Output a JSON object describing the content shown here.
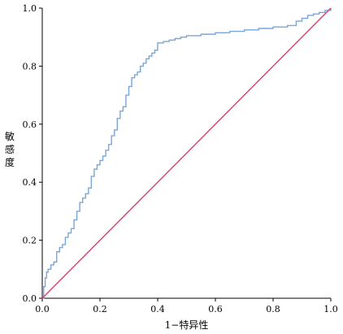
{
  "chart_data": {
    "type": "line",
    "title": "",
    "xlabel": "1−特异性",
    "ylabel": "敏感度",
    "xlim": [
      0,
      1
    ],
    "ylim": [
      0,
      1
    ],
    "xticks": [
      "0.0",
      "0.2",
      "0.4",
      "0.6",
      "0.8",
      "1.0"
    ],
    "yticks": [
      "0.0",
      "0.2",
      "0.4",
      "0.6",
      "0.8",
      "1.0"
    ],
    "grid": false,
    "legend": "none",
    "series": [
      {
        "role": "roc-curve",
        "color": "#7aa6d8",
        "points": [
          [
            0.0,
            0.0
          ],
          [
            0.005,
            0.04
          ],
          [
            0.01,
            0.07
          ],
          [
            0.015,
            0.09
          ],
          [
            0.02,
            0.1
          ],
          [
            0.03,
            0.115
          ],
          [
            0.04,
            0.125
          ],
          [
            0.05,
            0.16
          ],
          [
            0.06,
            0.175
          ],
          [
            0.07,
            0.185
          ],
          [
            0.08,
            0.21
          ],
          [
            0.09,
            0.225
          ],
          [
            0.1,
            0.24
          ],
          [
            0.11,
            0.27
          ],
          [
            0.12,
            0.3
          ],
          [
            0.13,
            0.33
          ],
          [
            0.14,
            0.345
          ],
          [
            0.15,
            0.36
          ],
          [
            0.16,
            0.38
          ],
          [
            0.17,
            0.42
          ],
          [
            0.18,
            0.445
          ],
          [
            0.19,
            0.46
          ],
          [
            0.2,
            0.475
          ],
          [
            0.21,
            0.49
          ],
          [
            0.22,
            0.51
          ],
          [
            0.23,
            0.53
          ],
          [
            0.24,
            0.56
          ],
          [
            0.25,
            0.58
          ],
          [
            0.26,
            0.62
          ],
          [
            0.27,
            0.645
          ],
          [
            0.28,
            0.66
          ],
          [
            0.29,
            0.7
          ],
          [
            0.3,
            0.73
          ],
          [
            0.31,
            0.76
          ],
          [
            0.32,
            0.77
          ],
          [
            0.33,
            0.78
          ],
          [
            0.34,
            0.8
          ],
          [
            0.35,
            0.81
          ],
          [
            0.36,
            0.825
          ],
          [
            0.37,
            0.835
          ],
          [
            0.38,
            0.845
          ],
          [
            0.39,
            0.855
          ],
          [
            0.4,
            0.88
          ],
          [
            0.42,
            0.885
          ],
          [
            0.44,
            0.89
          ],
          [
            0.46,
            0.895
          ],
          [
            0.48,
            0.9
          ],
          [
            0.5,
            0.905
          ],
          [
            0.55,
            0.91
          ],
          [
            0.6,
            0.915
          ],
          [
            0.65,
            0.92
          ],
          [
            0.7,
            0.925
          ],
          [
            0.75,
            0.93
          ],
          [
            0.8,
            0.935
          ],
          [
            0.85,
            0.94
          ],
          [
            0.88,
            0.955
          ],
          [
            0.9,
            0.965
          ],
          [
            0.92,
            0.975
          ],
          [
            0.94,
            0.98
          ],
          [
            0.96,
            0.985
          ],
          [
            0.98,
            0.992
          ],
          [
            1.0,
            1.0
          ]
        ]
      },
      {
        "role": "reference-line",
        "color": "#d8406a",
        "points": [
          [
            0,
            0
          ],
          [
            1,
            1
          ]
        ]
      }
    ]
  }
}
